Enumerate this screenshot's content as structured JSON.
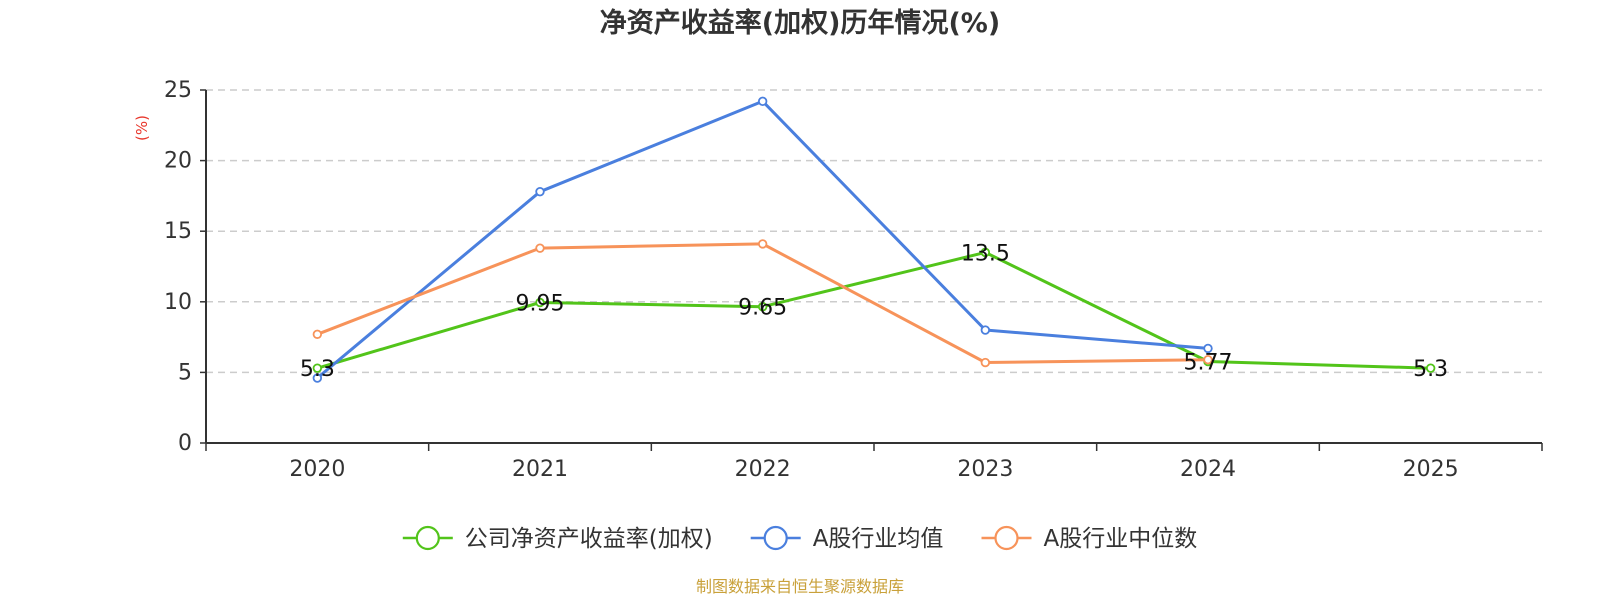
{
  "chart_data": {
    "type": "line",
    "title": "净资产收益率(加权)历年情况(%)",
    "y_unit": "(%)",
    "x": [
      "2020",
      "2021",
      "2022",
      "2023",
      "2024",
      "2025"
    ],
    "ylim": [
      0,
      25
    ],
    "y_ticks": [
      0,
      5,
      10,
      15,
      20,
      25
    ],
    "grid": true,
    "legend_position": "bottom",
    "series": [
      {
        "name": "公司净资产收益率(加权)",
        "color": "#52c41a",
        "values": [
          5.3,
          9.95,
          9.65,
          13.5,
          5.77,
          5.3
        ],
        "labels": [
          "5.3",
          "9.95",
          "9.65",
          "13.5",
          "5.77",
          "5.3"
        ]
      },
      {
        "name": "A股行业均值",
        "color": "#4a7fde",
        "values": [
          4.6,
          17.8,
          24.2,
          8.0,
          6.7,
          null
        ]
      },
      {
        "name": "A股行业中位数",
        "color": "#f7935a",
        "values": [
          7.7,
          13.8,
          14.1,
          5.7,
          5.9,
          null
        ]
      }
    ],
    "source": "制图数据来自恒生聚源数据库"
  }
}
